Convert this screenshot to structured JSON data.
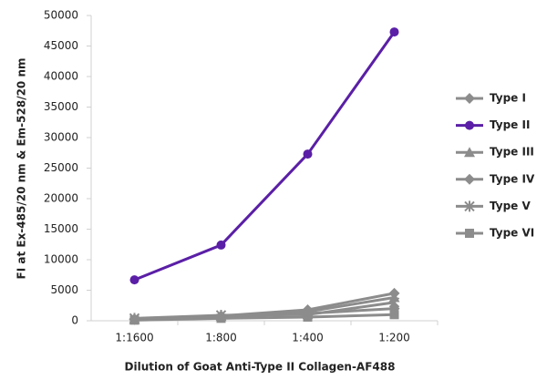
{
  "chart_data": {
    "type": "line",
    "y_label": "FI at Ex-485/20 nm & Em-528/20 nm",
    "x_label": "Dilution of Goat Anti-Type II Collagen-AF488",
    "categories": [
      "1:1600",
      "1:800",
      "1:400",
      "1:200"
    ],
    "ylim": [
      0,
      50000
    ],
    "yticks": [
      0,
      5000,
      10000,
      15000,
      20000,
      25000,
      30000,
      35000,
      40000,
      45000,
      50000
    ],
    "grid": false,
    "legend": "right",
    "series": [
      {
        "name": "Type I",
        "color": "#8c8c8c",
        "marker": "diamond",
        "values": [
          300,
          800,
          1800,
          4500
        ]
      },
      {
        "name": "Type II",
        "color": "#5a1fa6",
        "marker": "circle",
        "values": [
          6700,
          12400,
          27300,
          47300
        ]
      },
      {
        "name": "Type III",
        "color": "#8c8c8c",
        "marker": "triangle",
        "values": [
          200,
          700,
          1500,
          3800
        ]
      },
      {
        "name": "Type IV",
        "color": "#8c8c8c",
        "marker": "diamond",
        "values": [
          200,
          600,
          1200,
          2000
        ]
      },
      {
        "name": "Type V",
        "color": "#8c8c8c",
        "marker": "star",
        "values": [
          400,
          900,
          1000,
          3000
        ]
      },
      {
        "name": "Type VI",
        "color": "#8c8c8c",
        "marker": "square",
        "values": [
          100,
          400,
          600,
          1000
        ]
      }
    ]
  }
}
